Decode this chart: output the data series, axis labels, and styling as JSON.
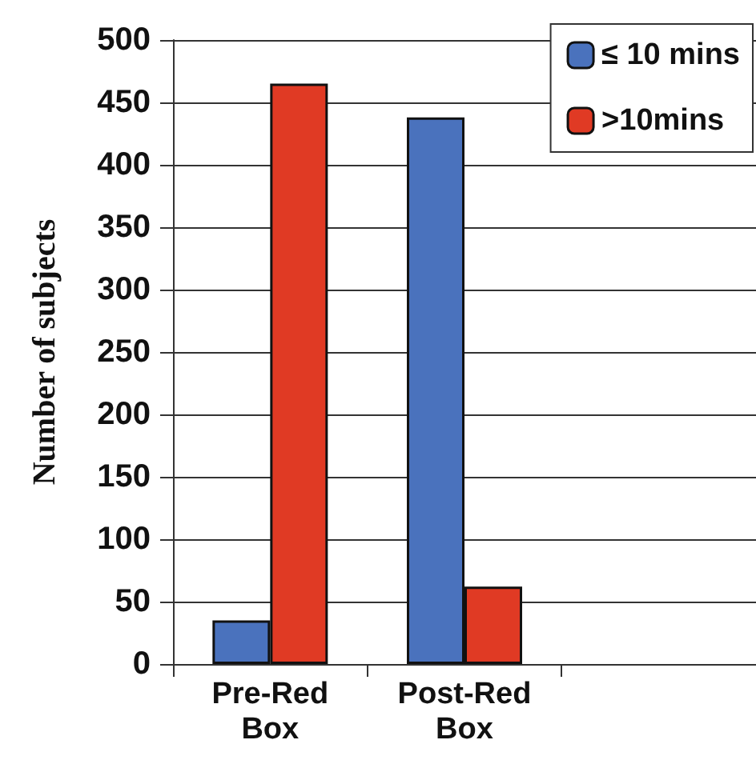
{
  "chart_data": {
    "type": "bar",
    "ylabel": "Number of subjects",
    "categories": [
      "Pre-Red Box",
      "Post-Red Box",
      null
    ],
    "series": [
      {
        "name": "≤ 10 mins",
        "color": "#4a72bd",
        "values": [
          35,
          438,
          null
        ]
      },
      {
        "name": ">10mins",
        "color": "#e03a24",
        "values": [
          465,
          62,
          null
        ]
      }
    ],
    "ylim": [
      0,
      500
    ],
    "yticks": [
      0,
      50,
      100,
      150,
      200,
      250,
      300,
      350,
      400,
      450,
      500
    ],
    "grid": "y",
    "legend": "top right"
  }
}
